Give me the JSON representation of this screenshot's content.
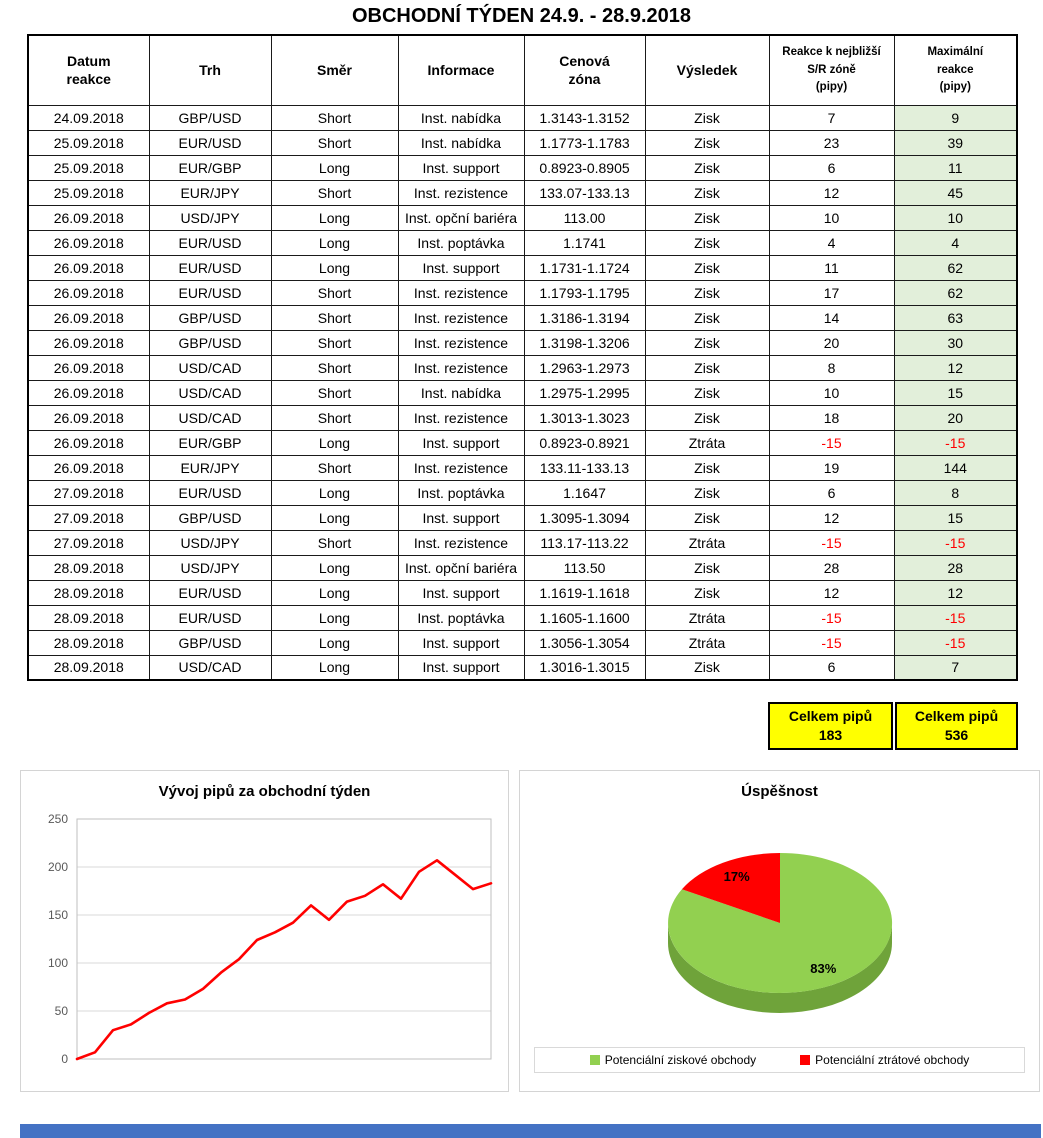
{
  "page_title": "OBCHODNÍ TÝDEN 24.9. - 28.9.2018",
  "table": {
    "headers": [
      "Datum\nreakce",
      "Trh",
      "Směr",
      "Informace",
      "Cenová\nzóna",
      "Výsledek",
      "Reakce k nejbližší\nS/R zóně\n(pipy)",
      "Maximální\nreakce\n(pipy)"
    ],
    "rows": [
      [
        "24.09.2018",
        "GBP/USD",
        "Short",
        "Inst. nabídka",
        "1.3143-1.3152",
        "Zisk",
        "7",
        "9"
      ],
      [
        "25.09.2018",
        "EUR/USD",
        "Short",
        "Inst. nabídka",
        "1.1773-1.1783",
        "Zisk",
        "23",
        "39"
      ],
      [
        "25.09.2018",
        "EUR/GBP",
        "Long",
        "Inst. support",
        "0.8923-0.8905",
        "Zisk",
        "6",
        "11"
      ],
      [
        "25.09.2018",
        "EUR/JPY",
        "Short",
        "Inst. rezistence",
        "133.07-133.13",
        "Zisk",
        "12",
        "45"
      ],
      [
        "26.09.2018",
        "USD/JPY",
        "Long",
        "Inst. opční bariéra",
        "113.00",
        "Zisk",
        "10",
        "10"
      ],
      [
        "26.09.2018",
        "EUR/USD",
        "Long",
        "Inst. poptávka",
        "1.1741",
        "Zisk",
        "4",
        "4"
      ],
      [
        "26.09.2018",
        "EUR/USD",
        "Long",
        "Inst. support",
        "1.1731-1.1724",
        "Zisk",
        "11",
        "62"
      ],
      [
        "26.09.2018",
        "EUR/USD",
        "Short",
        "Inst. rezistence",
        "1.1793-1.1795",
        "Zisk",
        "17",
        "62"
      ],
      [
        "26.09.2018",
        "GBP/USD",
        "Short",
        "Inst. rezistence",
        "1.3186-1.3194",
        "Zisk",
        "14",
        "63"
      ],
      [
        "26.09.2018",
        "GBP/USD",
        "Short",
        "Inst. rezistence",
        "1.3198-1.3206",
        "Zisk",
        "20",
        "30"
      ],
      [
        "26.09.2018",
        "USD/CAD",
        "Short",
        "Inst. rezistence",
        "1.2963-1.2973",
        "Zisk",
        "8",
        "12"
      ],
      [
        "26.09.2018",
        "USD/CAD",
        "Short",
        "Inst. nabídka",
        "1.2975-1.2995",
        "Zisk",
        "10",
        "15"
      ],
      [
        "26.09.2018",
        "USD/CAD",
        "Short",
        "Inst. rezistence",
        "1.3013-1.3023",
        "Zisk",
        "18",
        "20"
      ],
      [
        "26.09.2018",
        "EUR/GBP",
        "Long",
        "Inst. support",
        "0.8923-0.8921",
        "Ztráta",
        "-15",
        "-15"
      ],
      [
        "26.09.2018",
        "EUR/JPY",
        "Short",
        "Inst. rezistence",
        "133.11-133.13",
        "Zisk",
        "19",
        "144"
      ],
      [
        "27.09.2018",
        "EUR/USD",
        "Long",
        "Inst. poptávka",
        "1.1647",
        "Zisk",
        "6",
        "8"
      ],
      [
        "27.09.2018",
        "GBP/USD",
        "Long",
        "Inst. support",
        "1.3095-1.3094",
        "Zisk",
        "12",
        "15"
      ],
      [
        "27.09.2018",
        "USD/JPY",
        "Short",
        "Inst. rezistence",
        "113.17-113.22",
        "Ztráta",
        "-15",
        "-15"
      ],
      [
        "28.09.2018",
        "USD/JPY",
        "Long",
        "Inst. opční bariéra",
        "113.50",
        "Zisk",
        "28",
        "28"
      ],
      [
        "28.09.2018",
        "EUR/USD",
        "Long",
        "Inst. support",
        "1.1619-1.1618",
        "Zisk",
        "12",
        "12"
      ],
      [
        "28.09.2018",
        "EUR/USD",
        "Long",
        "Inst. poptávka",
        "1.1605-1.1600",
        "Ztráta",
        "-15",
        "-15"
      ],
      [
        "28.09.2018",
        "GBP/USD",
        "Long",
        "Inst. support",
        "1.3056-1.3054",
        "Ztráta",
        "-15",
        "-15"
      ],
      [
        "28.09.2018",
        "USD/CAD",
        "Long",
        "Inst. support",
        "1.3016-1.3015",
        "Zisk",
        "6",
        "7"
      ]
    ]
  },
  "totals": {
    "sr_zone": {
      "label": "Celkem pipů",
      "value": "183"
    },
    "max_reaction": {
      "label": "Celkem pipů",
      "value": "536"
    }
  },
  "chart_data": [
    {
      "type": "line",
      "title": "Vývoj pipů za obchodní týden",
      "x_description": "trade sequence during the week (cumulative pips after each trade, starting at 0)",
      "values": [
        0,
        7,
        30,
        36,
        48,
        58,
        62,
        73,
        90,
        104,
        124,
        132,
        142,
        160,
        145,
        164,
        170,
        182,
        167,
        195,
        207,
        192,
        177,
        183
      ],
      "xlabel": "",
      "ylabel": "",
      "ylim": [
        0,
        250
      ],
      "yticks": [
        0,
        50,
        100,
        150,
        200,
        250
      ],
      "line_color": "#FF0000",
      "grid": true,
      "legend_position": "none"
    },
    {
      "type": "pie",
      "title": "Úspěšnost",
      "labels": [
        "Potenciální ziskové obchody",
        "Potenciální ztrátové obchody"
      ],
      "values": [
        83,
        17
      ],
      "data_labels": [
        "83%",
        "17%"
      ],
      "colors": [
        "#92D050",
        "#FF0000"
      ],
      "side_color": "#6FA33A",
      "label_color": "#000000",
      "effect": "3d",
      "legend_position": "bottom"
    }
  ]
}
